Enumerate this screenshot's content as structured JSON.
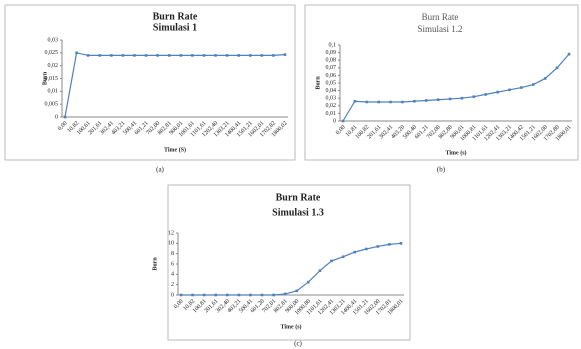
{
  "chart_data": [
    {
      "type": "line",
      "title": "Burn Rate",
      "subtitle": "Simulasi 1",
      "x_label": "Time (S)",
      "y_label": "Burn",
      "caption": "(a)",
      "categories": [
        "0,00",
        "10,82",
        "100,61",
        "201,61",
        "302,41",
        "403,21",
        "500,41",
        "601,21",
        "702,00",
        "802,81",
        "900,01",
        "1001,61",
        "1101,61",
        "1202,40",
        "1303,21",
        "1400,41",
        "1501,21",
        "1602,01",
        "1702,82",
        "1800,02"
      ],
      "values": [
        0,
        0.025,
        0.024,
        0.024,
        0.024,
        0.024,
        0.024,
        0.024,
        0.024,
        0.024,
        0.024,
        0.024,
        0.024,
        0.024,
        0.024,
        0.024,
        0.024,
        0.024,
        0.024,
        0.0243
      ],
      "color": "#4f81bd",
      "grid": false,
      "ylim": [
        0,
        0.03
      ],
      "yticks": [
        0,
        {
          "value": 0.005,
          "label": "0,005"
        },
        {
          "value": 0.01,
          "label": "0,01"
        },
        {
          "value": 0.015,
          "label": "0,015"
        },
        {
          "value": 0.02,
          "label": "0,02"
        },
        {
          "value": 0.025,
          "label": "0,025"
        },
        {
          "value": 0.03,
          "label": "0,03"
        }
      ]
    },
    {
      "type": "line",
      "title": "Burn Rate",
      "subtitle": "Simulasi 1.2",
      "x_label": "Time (s)",
      "y_label": "Burn",
      "caption": "(b)",
      "categories": [
        "0,00",
        "10,81",
        "100,82",
        "201,61",
        "302,41",
        "403,20",
        "500,40",
        "601,21",
        "702,00",
        "802,80",
        "900,01",
        "1000,81",
        "1101,61",
        "1202,41",
        "1303,21",
        "1400,42",
        "1501,21",
        "1602,00",
        "1702,80",
        "1800,01"
      ],
      "values": [
        0,
        0.026,
        0.025,
        0.025,
        0.025,
        0.025,
        0.026,
        0.027,
        0.028,
        0.029,
        0.03,
        0.032,
        0.035,
        0.038,
        0.041,
        0.044,
        0.048,
        0.056,
        0.07,
        0.088
      ],
      "color": "#4f81bd",
      "grid": false,
      "ylim": [
        0,
        0.1
      ],
      "yticks": [
        0,
        {
          "value": 0.01,
          "label": "0,01"
        },
        {
          "value": 0.02,
          "label": "0,02"
        },
        {
          "value": 0.03,
          "label": "0,03"
        },
        {
          "value": 0.04,
          "label": "0,04"
        },
        {
          "value": 0.05,
          "label": "0,05"
        },
        {
          "value": 0.06,
          "label": "0,06"
        },
        {
          "value": 0.07,
          "label": "0,07"
        },
        {
          "value": 0.08,
          "label": "0,08"
        },
        {
          "value": 0.09,
          "label": "0,09"
        },
        {
          "value": 0.1,
          "label": "0,1"
        }
      ]
    },
    {
      "type": "line",
      "title": "Burn Rate",
      "subtitle": "Simulasi 1.3",
      "x_label": "Time (s)",
      "y_label": "Burn",
      "caption": "(c)",
      "categories": [
        "0,00",
        "10,82",
        "100,81",
        "201,61",
        "302,40",
        "403,21",
        "500,41",
        "601,20",
        "702,01",
        "802,81",
        "900,00",
        "1000,80",
        "1101,61",
        "1202,41",
        "1303,21",
        "1400,41",
        "1501,21",
        "1602,00",
        "1702,81",
        "1800,01"
      ],
      "values": [
        0,
        0,
        0,
        0,
        0,
        0,
        0,
        0,
        0,
        0.2,
        0.8,
        2.5,
        4.7,
        6.6,
        7.4,
        8.3,
        8.9,
        9.4,
        9.8,
        10
      ],
      "color": "#4f81bd",
      "grid": false,
      "ylim": [
        0,
        12
      ],
      "yticks": [
        0,
        2,
        4,
        6,
        8,
        10,
        12
      ]
    }
  ]
}
